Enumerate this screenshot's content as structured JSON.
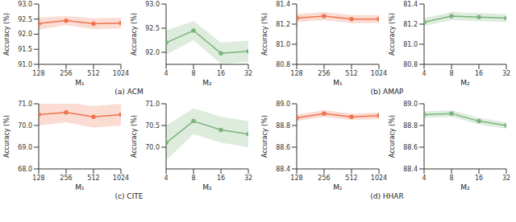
{
  "chart_data": [
    {
      "type": "line",
      "xlabel": "M₁",
      "ylabel": "Accuracy (%)",
      "x": [
        128,
        256,
        512,
        1024
      ],
      "log": "x",
      "xlim": [
        128,
        1024
      ],
      "xticks": [
        128,
        256,
        512,
        1024
      ],
      "ylim": [
        91,
        93
      ],
      "yticks": [
        {
          "value": 91,
          "label": "91.0"
        },
        91.5,
        {
          "value": 92,
          "label": "92.0"
        },
        92.5,
        {
          "value": 93,
          "label": "93.0"
        }
      ],
      "color": "#ef7350",
      "marker": "circle",
      "grid": false,
      "values": [
        92.35,
        92.45,
        92.35,
        92.37
      ],
      "errors": [
        0.2,
        0.15,
        0.18,
        0.18
      ]
    },
    {
      "type": "line",
      "xlabel": "M₂",
      "ylabel": "Accuracy (%)",
      "x": [
        4,
        8,
        16,
        32
      ],
      "log": "x",
      "xlim": [
        4,
        32
      ],
      "xticks": [
        4,
        8,
        16,
        32
      ],
      "ylim": [
        91.75,
        93
      ],
      "yticks": [
        {
          "value": 92,
          "label": "92.0"
        },
        92.5,
        {
          "value": 93,
          "label": "93.0"
        }
      ],
      "color": "#7ab47c",
      "marker": "circle",
      "grid": false,
      "values": [
        92.2,
        92.45,
        91.98,
        92.02
      ],
      "errors": [
        0.25,
        0.2,
        0.22,
        0.22
      ]
    },
    {
      "type": "line",
      "xlabel": "M₁",
      "ylabel": "Accuracy (%)",
      "x": [
        128,
        256,
        512,
        1024
      ],
      "log": "x",
      "xlim": [
        128,
        1024
      ],
      "xticks": [
        128,
        256,
        512,
        1024
      ],
      "ylim": [
        80.8,
        81.4
      ],
      "yticks": [
        80.8,
        {
          "value": 81,
          "label": "81.0"
        },
        81.2,
        81.4
      ],
      "color": "#ef7350",
      "marker": "circle",
      "grid": false,
      "values": [
        81.26,
        81.28,
        81.25,
        81.25
      ],
      "errors": [
        0.04,
        0.04,
        0.04,
        0.04
      ]
    },
    {
      "type": "line",
      "xlabel": "M₂",
      "ylabel": "Accuracy (%)",
      "x": [
        4,
        8,
        16,
        32
      ],
      "log": "x",
      "xlim": [
        4,
        32
      ],
      "xticks": [
        4,
        8,
        16,
        32
      ],
      "ylim": [
        80.8,
        81.4
      ],
      "yticks": [
        80.8,
        {
          "value": 81,
          "label": "81.0"
        },
        81.2,
        81.4
      ],
      "color": "#7ab47c",
      "marker": "circle",
      "grid": false,
      "values": [
        81.22,
        81.28,
        81.27,
        81.26
      ],
      "errors": [
        0.04,
        0.04,
        0.04,
        0.04
      ]
    },
    {
      "type": "line",
      "xlabel": "M₁",
      "ylabel": "Accuracy (%)",
      "x": [
        128,
        256,
        512,
        1024
      ],
      "log": "x",
      "xlim": [
        128,
        1024
      ],
      "xticks": [
        128,
        256,
        512,
        1024
      ],
      "ylim": [
        68,
        71
      ],
      "yticks": [
        {
          "value": 68,
          "label": "68.0"
        },
        {
          "value": 69,
          "label": "69.0"
        },
        {
          "value": 70,
          "label": "70.0"
        },
        {
          "value": 71,
          "label": "71.0"
        }
      ],
      "color": "#ef7350",
      "marker": "circle",
      "grid": false,
      "values": [
        70.5,
        70.6,
        70.4,
        70.5
      ],
      "errors": [
        0.5,
        0.45,
        0.5,
        0.5
      ]
    },
    {
      "type": "line",
      "xlabel": "M₂",
      "ylabel": "Accuracy (%)",
      "x": [
        4,
        8,
        16,
        32
      ],
      "log": "x",
      "xlim": [
        4,
        32
      ],
      "xticks": [
        4,
        8,
        16,
        32
      ],
      "ylim": [
        69.5,
        71
      ],
      "yticks": [
        {
          "value": 70,
          "label": "70.0"
        },
        70.5,
        {
          "value": 71,
          "label": "71.0"
        }
      ],
      "color": "#7ab47c",
      "marker": "circle",
      "grid": false,
      "values": [
        70.1,
        70.6,
        70.4,
        70.3
      ],
      "errors": [
        0.4,
        0.3,
        0.3,
        0.3
      ]
    },
    {
      "type": "line",
      "xlabel": "M₁",
      "ylabel": "Accuracy (%)",
      "x": [
        128,
        256,
        512,
        1024
      ],
      "log": "x",
      "xlim": [
        128,
        1024
      ],
      "xticks": [
        128,
        256,
        512,
        1024
      ],
      "ylim": [
        88.4,
        89
      ],
      "yticks": [
        88.4,
        88.6,
        88.8,
        {
          "value": 89,
          "label": "89.0"
        }
      ],
      "color": "#ef7350",
      "marker": "circle",
      "grid": false,
      "values": [
        88.87,
        88.91,
        88.88,
        88.89
      ],
      "errors": [
        0.03,
        0.03,
        0.03,
        0.03
      ]
    },
    {
      "type": "line",
      "xlabel": "M₂",
      "ylabel": "Accuracy (%)",
      "x": [
        4,
        8,
        16,
        32
      ],
      "log": "x",
      "xlim": [
        4,
        32
      ],
      "xticks": [
        4,
        8,
        16,
        32
      ],
      "ylim": [
        88.4,
        89
      ],
      "yticks": [
        88.4,
        88.6,
        88.8,
        {
          "value": 89,
          "label": "89.0"
        }
      ],
      "color": "#7ab47c",
      "marker": "circle",
      "grid": false,
      "values": [
        88.9,
        88.91,
        88.84,
        88.8
      ],
      "errors": [
        0.03,
        0.03,
        0.03,
        0.03
      ]
    }
  ],
  "captions": [
    "(a) ACM",
    "(b) AMAP",
    "(c) CITE",
    "(d) HHAR"
  ]
}
